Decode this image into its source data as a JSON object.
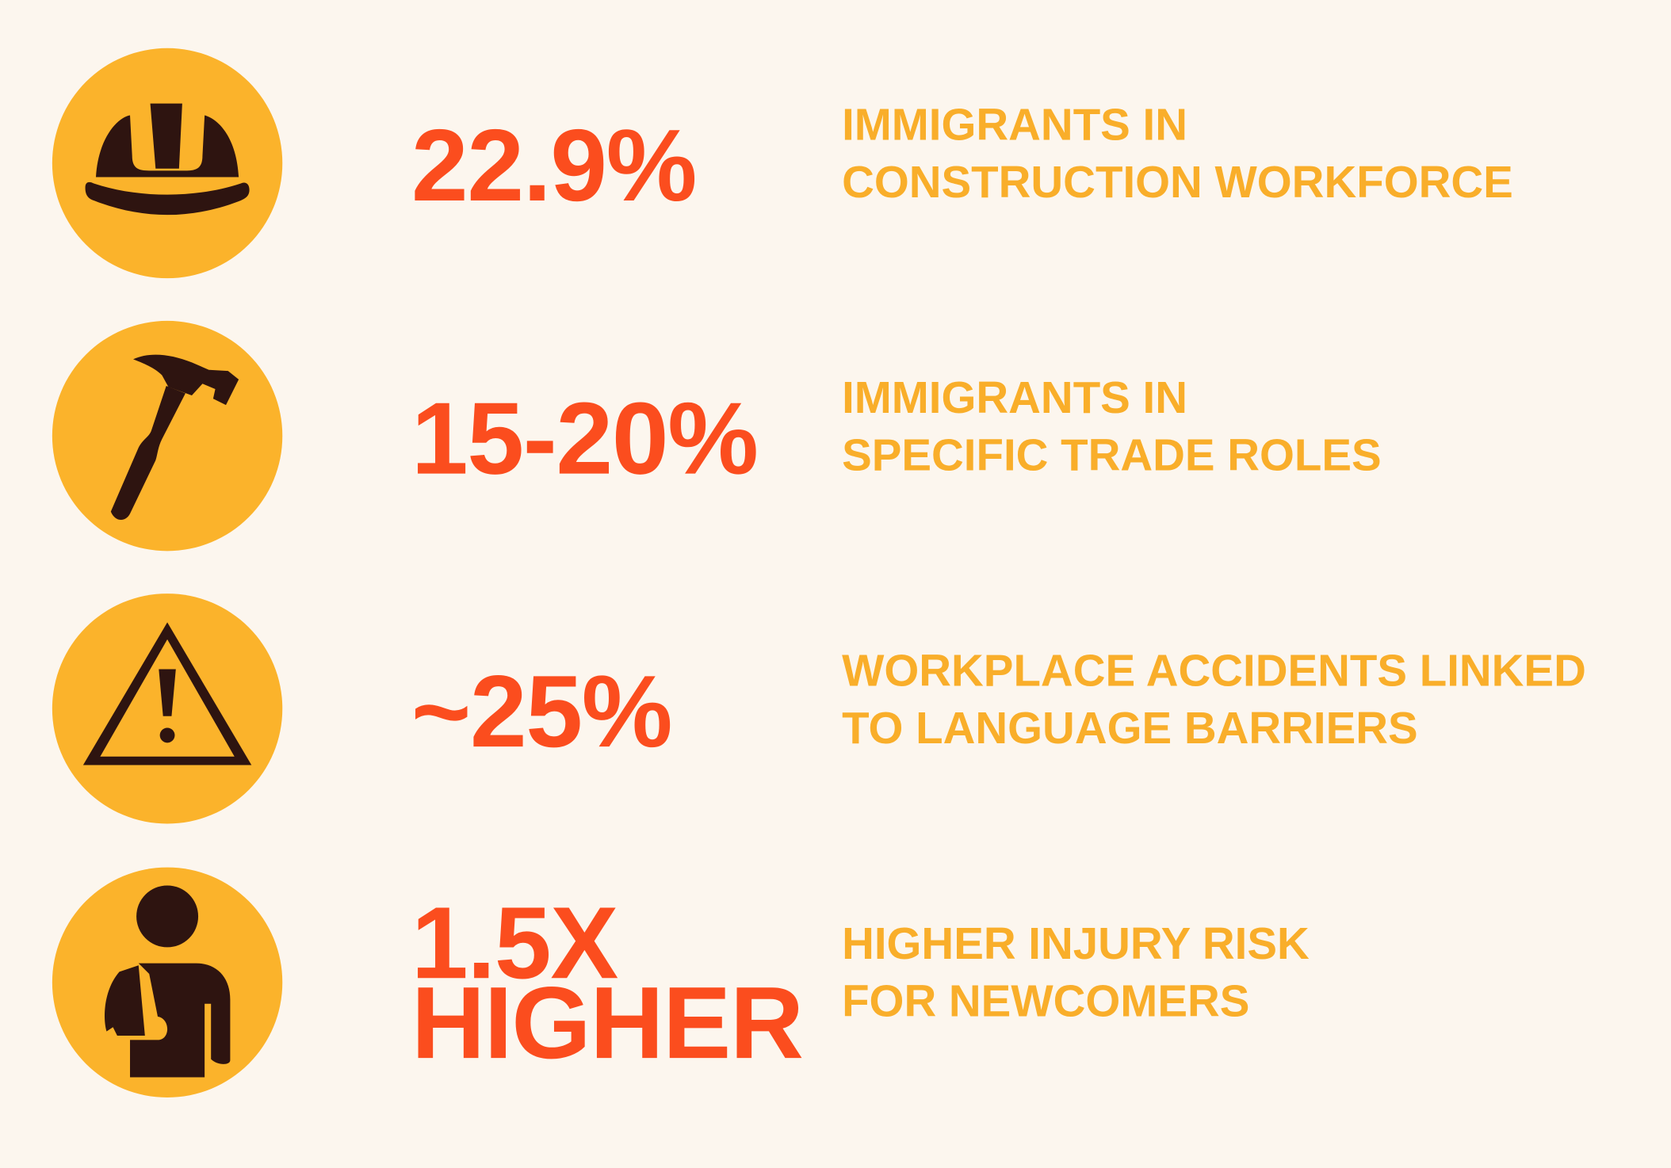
{
  "items": [
    {
      "stat": [
        "22.9%"
      ],
      "label": [
        "IMMIGRANTS IN",
        "CONSTRUCTION WORKFORCE"
      ]
    },
    {
      "stat": [
        "15-20%"
      ],
      "label": [
        "IMMIGRANTS IN",
        "SPECIFIC TRADE ROLES"
      ]
    },
    {
      "stat": [
        "~25%"
      ],
      "label": [
        "WORKPLACE ACCIDENTS LINKED",
        "TO LANGUAGE BARRIERS"
      ]
    },
    {
      "stat": [
        "1.5X",
        "HIGHER"
      ],
      "label": [
        "HIGHER INJURY RISK",
        "FOR NEWCOMERS"
      ]
    }
  ]
}
